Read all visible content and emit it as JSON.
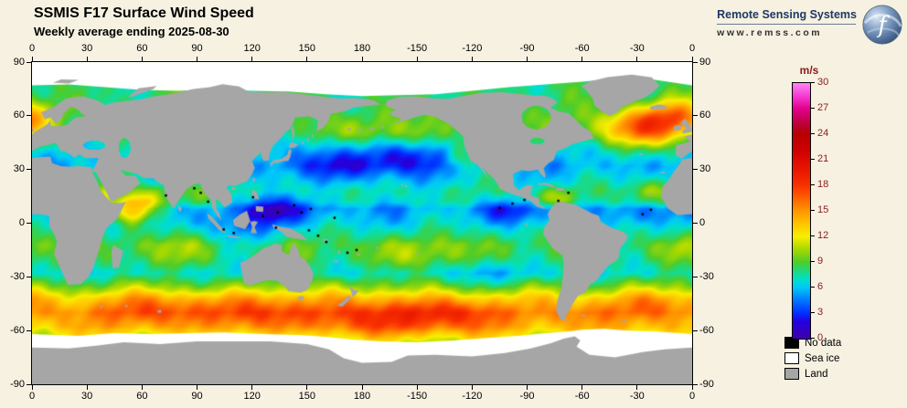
{
  "page": {
    "background": "#f6f1e1"
  },
  "header": {
    "title": "SSMIS F17 Surface Wind Speed",
    "subtitle": "Weekly average ending 2025-08-30"
  },
  "branding": {
    "name": "Remote Sensing Systems",
    "url": "www.remss.com"
  },
  "axes": {
    "lon_tick_labels": [
      "0",
      "30",
      "60",
      "90",
      "120",
      "150",
      "180",
      "-150",
      "-120",
      "-90",
      "-60",
      "-30",
      "0"
    ],
    "lat_tick_labels": [
      "90",
      "60",
      "30",
      "0",
      "-30",
      "-60",
      "-90"
    ],
    "lon_major_step_deg": 30,
    "lat_major_step_deg": 30
  },
  "colorbar": {
    "units": "m/s",
    "min": 0,
    "max": 30,
    "tick_values": [
      0,
      3,
      6,
      9,
      12,
      15,
      18,
      21,
      24,
      27,
      30
    ],
    "label_color": "#8b1a1a",
    "stops": [
      [
        0,
        "#3e00a8"
      ],
      [
        2,
        "#2400e0"
      ],
      [
        3,
        "#0030ff"
      ],
      [
        4.5,
        "#0078ff"
      ],
      [
        6,
        "#00c8f8"
      ],
      [
        7,
        "#00e0c8"
      ],
      [
        8,
        "#20d878"
      ],
      [
        9,
        "#50cc28"
      ],
      [
        10.5,
        "#a8d800"
      ],
      [
        12,
        "#f8ee00"
      ],
      [
        13.5,
        "#ffc400"
      ],
      [
        15,
        "#ff9600"
      ],
      [
        16.5,
        "#ff6000"
      ],
      [
        18,
        "#f83000"
      ],
      [
        20,
        "#e61400"
      ],
      [
        22,
        "#d20000"
      ],
      [
        24,
        "#b60000"
      ],
      [
        25.5,
        "#c00048"
      ],
      [
        27,
        "#e4008c"
      ],
      [
        28.5,
        "#f63cd4"
      ],
      [
        30,
        "#ff86f4"
      ]
    ]
  },
  "legend": {
    "items": [
      {
        "label": "No data",
        "color": "#000000"
      },
      {
        "label": "Sea ice",
        "color": "#ffffff"
      },
      {
        "label": "Land",
        "color": "#a6a6a6"
      }
    ]
  },
  "map": {
    "field": "surface wind speed",
    "units": "m/s",
    "projection": "equirectangular, pacific-centered, 0E at left edge",
    "lon_range_deg_east": [
      0,
      360
    ],
    "lat_range": [
      -90,
      90
    ],
    "land_color": "#a6a6a6",
    "sea_ice_color": "#ffffff",
    "no_data_color": "#000000",
    "zonal_mean_wind_ms": [
      [
        -90,
        8
      ],
      [
        -75,
        9
      ],
      [
        -65,
        11
      ],
      [
        -58,
        13.5
      ],
      [
        -50,
        14.5
      ],
      [
        -42,
        12.5
      ],
      [
        -35,
        9.5
      ],
      [
        -28,
        7
      ],
      [
        -20,
        8
      ],
      [
        -12,
        8.5
      ],
      [
        -5,
        7.5
      ],
      [
        0,
        6.5
      ],
      [
        4,
        6
      ],
      [
        8,
        5.5
      ],
      [
        12,
        7
      ],
      [
        18,
        7.5
      ],
      [
        25,
        6.5
      ],
      [
        32,
        5.5
      ],
      [
        40,
        6.5
      ],
      [
        50,
        8
      ],
      [
        60,
        8.5
      ],
      [
        75,
        8
      ],
      [
        90,
        8
      ]
    ],
    "regional_anomalies_ms": [
      [
        335,
        53,
        20,
        7,
        8
      ],
      [
        350,
        61,
        14,
        6,
        5
      ],
      [
        178,
        33,
        26,
        7,
        -3.5
      ],
      [
        205,
        38,
        15,
        5,
        -2
      ],
      [
        145,
        8,
        18,
        6,
        -2
      ],
      [
        115,
        -2,
        16,
        8,
        -2.5
      ],
      [
        128,
        8,
        8,
        5,
        -2.5
      ],
      [
        262,
        7,
        12,
        5,
        -3
      ],
      [
        60,
        11,
        9,
        6,
        6
      ],
      [
        53,
        6,
        6,
        5,
        4
      ],
      [
        88,
        14,
        7,
        5,
        2
      ],
      [
        40,
        15,
        4,
        5,
        3
      ],
      [
        52,
        27,
        4,
        3,
        2.5
      ],
      [
        285,
        14,
        9,
        4,
        3.5
      ],
      [
        75,
        -48,
        30,
        7,
        3
      ],
      [
        140,
        -50,
        25,
        7,
        2.5
      ],
      [
        200,
        -54,
        30,
        8,
        3.5
      ],
      [
        230,
        -50,
        20,
        6,
        2.5
      ],
      [
        300,
        -50,
        15,
        6,
        1.5
      ],
      [
        340,
        -45,
        20,
        6,
        2
      ],
      [
        75,
        -15,
        25,
        6,
        1.5
      ],
      [
        255,
        -28,
        20,
        7,
        -1.5
      ],
      [
        185,
        52,
        25,
        5,
        2
      ],
      [
        233,
        36,
        5,
        5,
        3
      ],
      [
        215,
        -17,
        30,
        6,
        2
      ],
      [
        342,
        18,
        10,
        5,
        3
      ],
      [
        330,
        5,
        12,
        4,
        -1.5
      ],
      [
        350,
        -15,
        15,
        5,
        1.5
      ],
      [
        160,
        -38,
        8,
        5,
        1
      ]
    ],
    "noise_amp_ms": 0.85
  }
}
